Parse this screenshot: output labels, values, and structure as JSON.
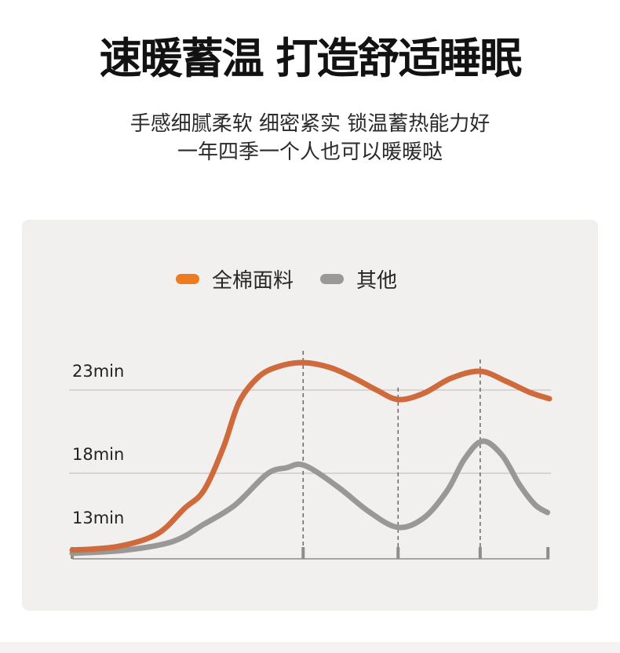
{
  "header": {
    "title": "速暖蓄温 打造舒适睡眠",
    "subtitle_line1": "手感细腻柔软 细密紧实 锁温蓄热能力好",
    "subtitle_line2": "一年四季一个人也可以暖暖哒"
  },
  "legend": {
    "items": [
      {
        "label": "全棉面料",
        "color": "#ee7b1e"
      },
      {
        "label": "其他",
        "color": "#9b9998"
      }
    ]
  },
  "chart_data": {
    "type": "line",
    "grid": "horizontal-only",
    "legend_position": "top",
    "x_range": [
      0,
      100
    ],
    "ylim": [
      12.9,
      26
    ],
    "yticks": [
      {
        "label": "23min",
        "value": 23
      },
      {
        "label": "18min",
        "value": 18
      },
      {
        "label": "13min",
        "value": 13
      }
    ],
    "markers_x": [
      48.4,
      68.3,
      85.5
    ],
    "axis_ticks_x": [
      0,
      48.4,
      68.3,
      85.5,
      99.7
    ],
    "series": [
      {
        "name": "全棉面料",
        "color": "#cf6a3c",
        "x": [
          0,
          9.5,
          17.8,
          23.5,
          27.6,
          31.7,
          35.0,
          39.1,
          43.3,
          48.4,
          53.9,
          58.9,
          63.8,
          68.4,
          73.7,
          79.4,
          85.5,
          91.0,
          95.9,
          100
        ],
        "values": [
          13.38,
          13.6,
          14.35,
          15.88,
          16.97,
          19.56,
          22.29,
          23.8,
          24.42,
          24.65,
          24.37,
          23.75,
          23.0,
          22.43,
          22.81,
          23.71,
          24.13,
          23.52,
          22.86,
          22.48
        ]
      },
      {
        "name": "其他",
        "color": "#9a9896",
        "x": [
          0,
          11.2,
          21.1,
          27.6,
          34.2,
          40.8,
          44.9,
          48.7,
          55.6,
          62.2,
          68.3,
          73.7,
          78.6,
          82.2,
          86.0,
          90.1,
          93.8,
          97.0,
          99.6
        ],
        "values": [
          13.19,
          13.38,
          13.9,
          14.94,
          16.11,
          17.95,
          18.33,
          18.47,
          17.2,
          15.69,
          14.75,
          15.32,
          16.96,
          18.85,
          19.93,
          19.08,
          17.29,
          16.11,
          15.64
        ]
      }
    ]
  }
}
